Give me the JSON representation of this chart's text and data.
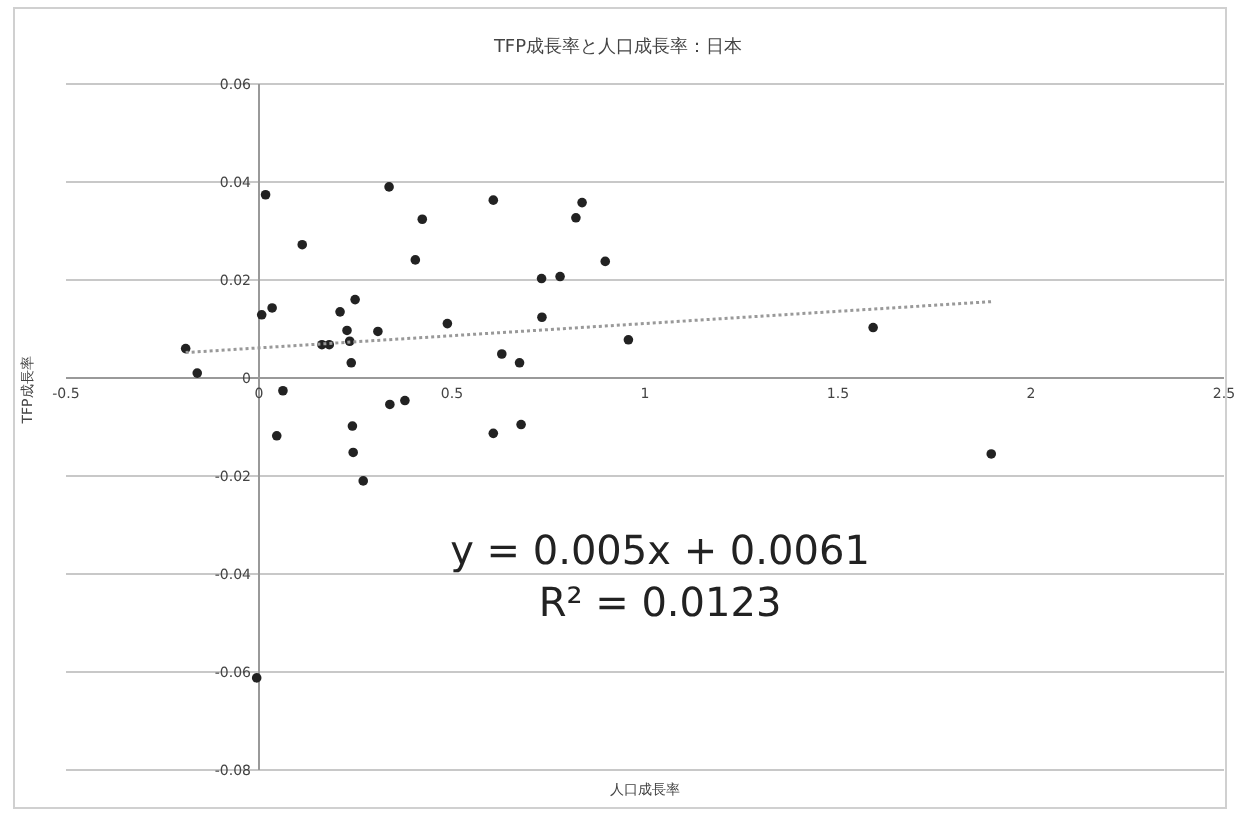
{
  "chart_data": {
    "type": "scatter",
    "title": "TFP成長率と人口成長率：日本",
    "xlabel": "人口成長率",
    "ylabel": "TFP成長率",
    "series": [
      {
        "color": "#222222",
        "marker": "circle",
        "x": [
          -0.19,
          -0.16,
          0.017,
          0.007,
          0.034,
          0.062,
          0.046,
          0.112,
          0.163,
          0.182,
          0.21,
          0.228,
          0.235,
          0.239,
          0.249,
          0.242,
          0.244,
          0.27,
          0.308,
          0.337,
          0.339,
          0.378,
          0.405,
          0.423,
          0.488,
          0.607,
          0.607,
          0.629,
          0.675,
          0.679,
          0.732,
          0.733,
          0.78,
          0.821,
          0.837,
          0.897,
          0.957,
          1.591,
          1.897,
          -0.006
        ],
        "values": [
          0.006,
          0.001,
          0.0374,
          0.0129,
          0.0143,
          -0.0026,
          -0.0118,
          0.0272,
          0.0068,
          0.0068,
          0.0135,
          0.0097,
          0.0075,
          0.0031,
          0.016,
          -0.0098,
          -0.0152,
          -0.021,
          0.0095,
          0.039,
          -0.0054,
          -0.0046,
          0.0241,
          0.0324,
          0.0111,
          0.0363,
          -0.0113,
          0.0049,
          0.0031,
          -0.0095,
          0.0203,
          0.0124,
          0.0207,
          0.0327,
          0.0358,
          0.0238,
          0.0078,
          0.0103,
          -0.0155,
          -0.0612
        ]
      },
      {
        "type": "line",
        "color": "#999999",
        "line_style": "dotted",
        "marker": "none",
        "x": [
          -0.19,
          1.9
        ],
        "values": [
          0.0052,
          0.0156
        ]
      }
    ],
    "xlim": [
      -0.5,
      2.5
    ],
    "xticks": [
      -0.5,
      0,
      0.5,
      1,
      1.5,
      2,
      2.5
    ],
    "ylim": [
      -0.08,
      0.06
    ],
    "yticks": [
      -0.08,
      -0.06,
      -0.04,
      -0.02,
      0,
      0.02,
      0.04,
      0.06
    ],
    "grid": "y",
    "annotations": [
      "y = 0.005x + 0.0061",
      "R² = 0.0123"
    ]
  }
}
